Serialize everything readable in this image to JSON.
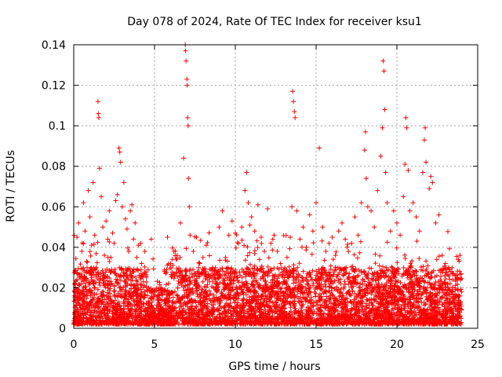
{
  "chart_data": {
    "type": "scatter",
    "title": "Day 078 of 2024, Rate Of TEC Index for receiver ksu1",
    "xlabel": "GPS time / hours",
    "ylabel": "ROTI / TECUs",
    "xlim": [
      0,
      25
    ],
    "ylim": [
      0,
      0.14
    ],
    "x_ticks": [
      0,
      5,
      10,
      15,
      20,
      25
    ],
    "x_tick_labels": [
      "0",
      "5",
      "10",
      "15",
      "20",
      "25"
    ],
    "y_ticks": [
      0,
      0.02,
      0.04,
      0.06,
      0.08,
      0.1,
      0.12,
      0.14
    ],
    "y_tick_labels": [
      "0",
      "0.02",
      "0.04",
      "0.06",
      "0.08",
      "0.1",
      "0.12",
      "0.14"
    ],
    "grid": true,
    "marker": "+",
    "color": "#ff0000",
    "series": [
      {
        "points": [
          [
            0.1,
            0.028
          ],
          [
            0.2,
            0.045
          ],
          [
            0.3,
            0.052
          ],
          [
            0.4,
            0.015
          ],
          [
            0.5,
            0.038
          ],
          [
            0.6,
            0.062
          ],
          [
            0.7,
            0.048
          ],
          [
            0.8,
            0.033
          ],
          [
            0.9,
            0.068
          ],
          [
            1.0,
            0.055
          ],
          [
            1.1,
            0.041
          ],
          [
            1.2,
            0.072
          ],
          [
            1.3,
            0.046
          ],
          [
            1.4,
            0.03
          ],
          [
            1.5,
            0.112
          ],
          [
            1.52,
            0.106
          ],
          [
            1.55,
            0.104
          ],
          [
            1.6,
            0.079
          ],
          [
            1.7,
            0.065
          ],
          [
            1.8,
            0.05
          ],
          [
            1.9,
            0.036
          ],
          [
            2.0,
            0.053
          ],
          [
            2.1,
            0.044
          ],
          [
            2.2,
            0.058
          ],
          [
            2.3,
            0.035
          ],
          [
            2.4,
            0.047
          ],
          [
            2.5,
            0.042
          ],
          [
            2.6,
            0.063
          ],
          [
            2.7,
            0.066
          ],
          [
            2.8,
            0.089
          ],
          [
            2.85,
            0.087
          ],
          [
            2.9,
            0.082
          ],
          [
            3.0,
            0.06
          ],
          [
            3.1,
            0.072
          ],
          [
            3.2,
            0.054
          ],
          [
            3.3,
            0.049
          ],
          [
            3.4,
            0.038
          ],
          [
            3.5,
            0.058
          ],
          [
            3.6,
            0.061
          ],
          [
            3.7,
            0.044
          ],
          [
            3.8,
            0.052
          ],
          [
            3.9,
            0.035
          ],
          [
            4.0,
            0.041
          ],
          [
            4.2,
            0.032
          ],
          [
            4.4,
            0.038
          ],
          [
            4.6,
            0.029
          ],
          [
            4.8,
            0.044
          ],
          [
            5.0,
            0.018
          ],
          [
            5.2,
            0.016
          ],
          [
            5.4,
            0.02
          ],
          [
            5.6,
            0.028
          ],
          [
            5.8,
            0.045
          ],
          [
            6.0,
            0.032
          ],
          [
            6.2,
            0.038
          ],
          [
            6.4,
            0.036
          ],
          [
            6.6,
            0.052
          ],
          [
            6.8,
            0.084
          ],
          [
            6.9,
            0.14
          ],
          [
            6.92,
            0.137
          ],
          [
            6.95,
            0.132
          ],
          [
            7.0,
            0.123
          ],
          [
            7.02,
            0.12
          ],
          [
            7.05,
            0.104
          ],
          [
            7.08,
            0.1
          ],
          [
            7.1,
            0.074
          ],
          [
            7.15,
            0.06
          ],
          [
            7.2,
            0.046
          ],
          [
            7.4,
            0.038
          ],
          [
            7.6,
            0.045
          ],
          [
            7.8,
            0.032
          ],
          [
            8.0,
            0.035
          ],
          [
            8.2,
            0.041
          ],
          [
            8.4,
            0.025
          ],
          [
            8.6,
            0.03
          ],
          [
            8.8,
            0.022
          ],
          [
            9.0,
            0.05
          ],
          [
            9.2,
            0.058
          ],
          [
            9.4,
            0.035
          ],
          [
            9.6,
            0.046
          ],
          [
            9.8,
            0.053
          ],
          [
            10.0,
            0.047
          ],
          [
            10.2,
            0.042
          ],
          [
            10.4,
            0.05
          ],
          [
            10.6,
            0.068
          ],
          [
            10.7,
            0.077
          ],
          [
            10.8,
            0.062
          ],
          [
            10.9,
            0.051
          ],
          [
            11.0,
            0.055
          ],
          [
            11.2,
            0.048
          ],
          [
            11.4,
            0.061
          ],
          [
            11.6,
            0.045
          ],
          [
            11.8,
            0.038
          ],
          [
            12.0,
            0.059
          ],
          [
            12.2,
            0.042
          ],
          [
            12.4,
            0.046
          ],
          [
            12.6,
            0.038
          ],
          [
            12.8,
            0.032
          ],
          [
            13.0,
            0.028
          ],
          [
            13.2,
            0.035
          ],
          [
            13.4,
            0.045
          ],
          [
            13.5,
            0.06
          ],
          [
            13.55,
            0.117
          ],
          [
            13.6,
            0.112
          ],
          [
            13.65,
            0.107
          ],
          [
            13.7,
            0.104
          ],
          [
            13.8,
            0.058
          ],
          [
            14.0,
            0.044
          ],
          [
            14.2,
            0.05
          ],
          [
            14.4,
            0.04
          ],
          [
            14.6,
            0.056
          ],
          [
            14.8,
            0.048
          ],
          [
            15.0,
            0.062
          ],
          [
            15.2,
            0.089
          ],
          [
            15.4,
            0.05
          ],
          [
            15.6,
            0.038
          ],
          [
            15.8,
            0.042
          ],
          [
            16.0,
            0.045
          ],
          [
            16.2,
            0.036
          ],
          [
            16.4,
            0.048
          ],
          [
            16.6,
            0.052
          ],
          [
            16.8,
            0.044
          ],
          [
            17.0,
            0.038
          ],
          [
            17.2,
            0.042
          ],
          [
            17.4,
            0.055
          ],
          [
            17.6,
            0.046
          ],
          [
            17.8,
            0.062
          ],
          [
            18.0,
            0.088
          ],
          [
            18.05,
            0.097
          ],
          [
            18.1,
            0.074
          ],
          [
            18.2,
            0.06
          ],
          [
            18.4,
            0.058
          ],
          [
            18.6,
            0.05
          ],
          [
            18.8,
            0.068
          ],
          [
            19.0,
            0.085
          ],
          [
            19.1,
            0.099
          ],
          [
            19.15,
            0.132
          ],
          [
            19.2,
            0.127
          ],
          [
            19.25,
            0.108
          ],
          [
            19.3,
            0.077
          ],
          [
            19.4,
            0.062
          ],
          [
            19.6,
            0.048
          ],
          [
            19.8,
            0.058
          ],
          [
            20.0,
            0.052
          ],
          [
            20.2,
            0.046
          ],
          [
            20.4,
            0.065
          ],
          [
            20.5,
            0.081
          ],
          [
            20.55,
            0.104
          ],
          [
            20.6,
            0.099
          ],
          [
            20.7,
            0.078
          ],
          [
            20.8,
            0.058
          ],
          [
            21.0,
            0.062
          ],
          [
            21.2,
            0.055
          ],
          [
            21.4,
            0.048
          ],
          [
            21.6,
            0.077
          ],
          [
            21.7,
            0.093
          ],
          [
            21.75,
            0.099
          ],
          [
            21.8,
            0.082
          ],
          [
            22.0,
            0.069
          ],
          [
            22.1,
            0.075
          ],
          [
            22.2,
            0.072
          ],
          [
            22.4,
            0.052
          ],
          [
            22.6,
            0.056
          ],
          [
            22.8,
            0.036
          ],
          [
            23.0,
            0.032
          ],
          [
            23.2,
            0.03
          ],
          [
            23.4,
            0.028
          ],
          [
            23.6,
            0.026
          ],
          [
            23.8,
            0.034
          ],
          [
            23.9,
            0.036
          ],
          [
            24.0,
            0.018
          ]
        ]
      }
    ]
  }
}
